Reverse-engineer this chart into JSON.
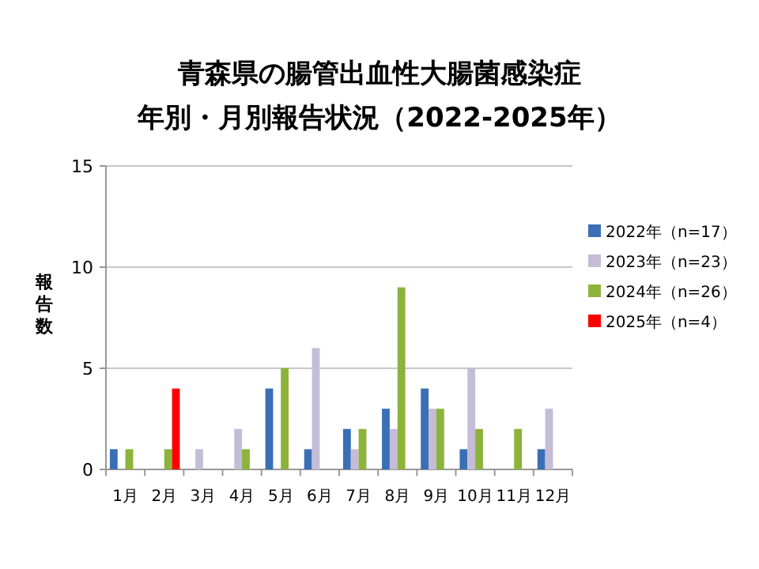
{
  "chart_data": {
    "type": "bar",
    "title": "青森県の腸管出血性大腸菌感染症",
    "subtitle": "年別・月別報告状況（2022-2025年）",
    "ylabel": "報告数",
    "categories": [
      "1月",
      "2月",
      "3月",
      "4月",
      "5月",
      "6月",
      "7月",
      "8月",
      "9月",
      "10月",
      "11月",
      "12月"
    ],
    "series": [
      {
        "name": "2022年（n=17）",
        "color": "#3a6fb5",
        "values": [
          1,
          0,
          0,
          0,
          4,
          1,
          2,
          3,
          4,
          1,
          0,
          1
        ]
      },
      {
        "name": "2023年（n=23）",
        "color": "#c5bcd6",
        "values": [
          0,
          0,
          1,
          2,
          0,
          6,
          1,
          2,
          3,
          5,
          0,
          3
        ]
      },
      {
        "name": "2024年（n=26）",
        "color": "#8cb33a",
        "values": [
          1,
          1,
          0,
          1,
          5,
          0,
          2,
          9,
          3,
          2,
          2,
          0
        ]
      },
      {
        "name": "2025年（n=4）",
        "color": "#ff0000",
        "values": [
          0,
          4,
          0,
          0,
          0,
          0,
          0,
          0,
          0,
          0,
          0,
          0
        ]
      }
    ],
    "ylim": [
      0,
      15
    ],
    "yticks": [
      0,
      5,
      10,
      15
    ],
    "grid": "y",
    "legend": "right"
  }
}
